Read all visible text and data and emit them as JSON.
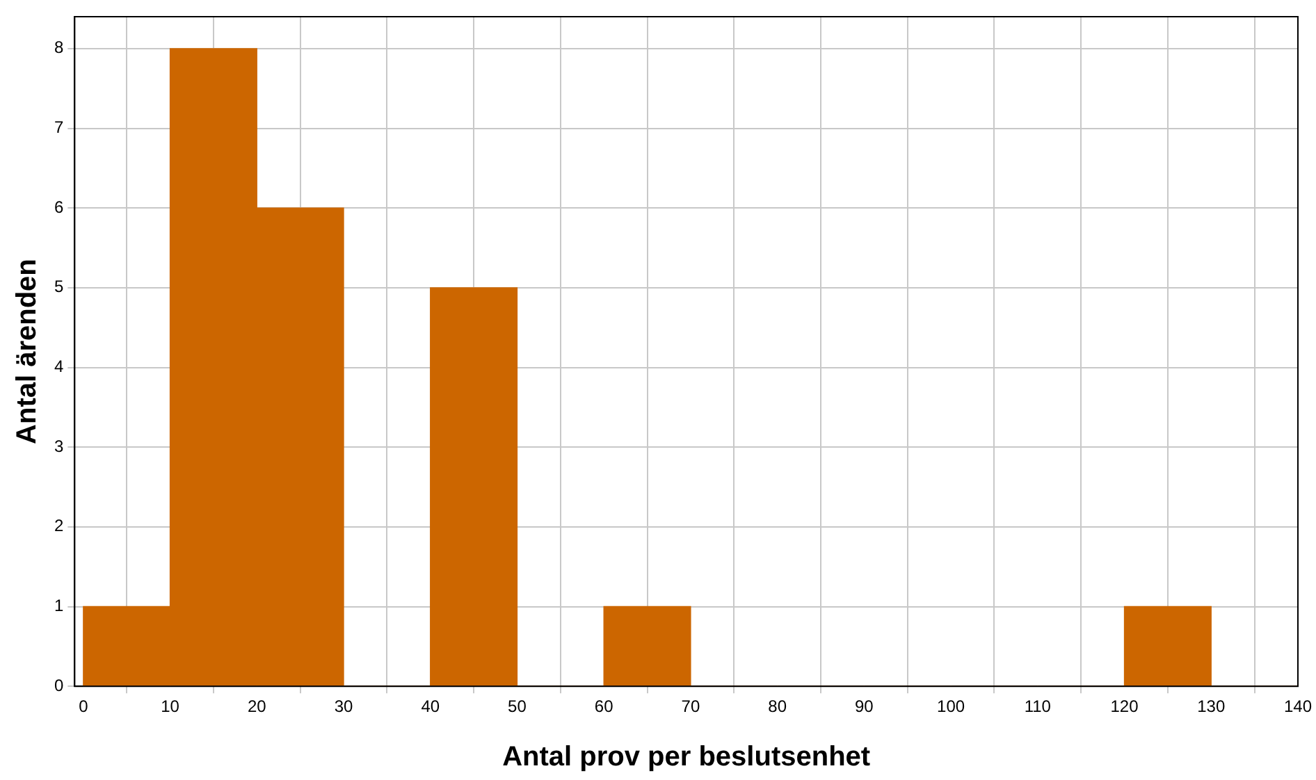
{
  "chart_data": {
    "type": "histogram",
    "xlabel": "Antal prov per beslutsenhet",
    "ylabel": "Antal ärenden",
    "bins": [
      0,
      10,
      20,
      30,
      40,
      50,
      60,
      70,
      80,
      90,
      100,
      110,
      120,
      130,
      140
    ],
    "values": [
      1,
      8,
      6,
      0,
      5,
      0,
      1,
      0,
      0,
      0,
      0,
      0,
      1,
      0
    ],
    "color": "#cc6600",
    "xlim": [
      -1,
      140
    ],
    "xticks": [
      0,
      10,
      20,
      30,
      40,
      50,
      60,
      70,
      80,
      90,
      100,
      110,
      120,
      130,
      140
    ],
    "ylim": [
      0,
      8.4
    ],
    "yticks": [
      0,
      1,
      2,
      3,
      4,
      5,
      6,
      7,
      8
    ],
    "grid": true,
    "legend": false
  }
}
